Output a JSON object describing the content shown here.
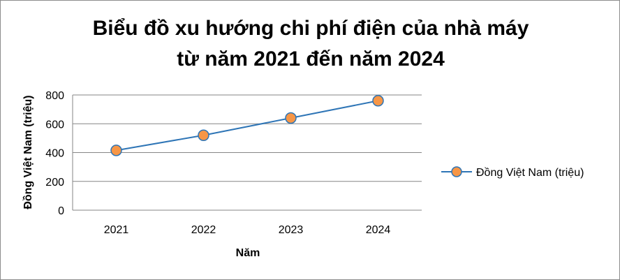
{
  "chart_data": {
    "type": "line",
    "title_line1": "Biểu đồ xu hướng chi phí điện của nhà máy",
    "title_line2": "từ năm 2021 đến năm 2024",
    "xlabel": "Năm",
    "ylabel": "Đồng Việt Nam (triệu)",
    "categories": [
      "2021",
      "2022",
      "2023",
      "2024"
    ],
    "series": [
      {
        "name": "Đồng Việt Nam (triệu)",
        "values": [
          415,
          520,
          640,
          760
        ],
        "color": "#2e75b6",
        "marker_color": "#f79646"
      }
    ],
    "yticks": [
      "0",
      "200",
      "400",
      "600",
      "800"
    ],
    "ylim": [
      0,
      800
    ],
    "grid": true,
    "legend_position": "right"
  }
}
